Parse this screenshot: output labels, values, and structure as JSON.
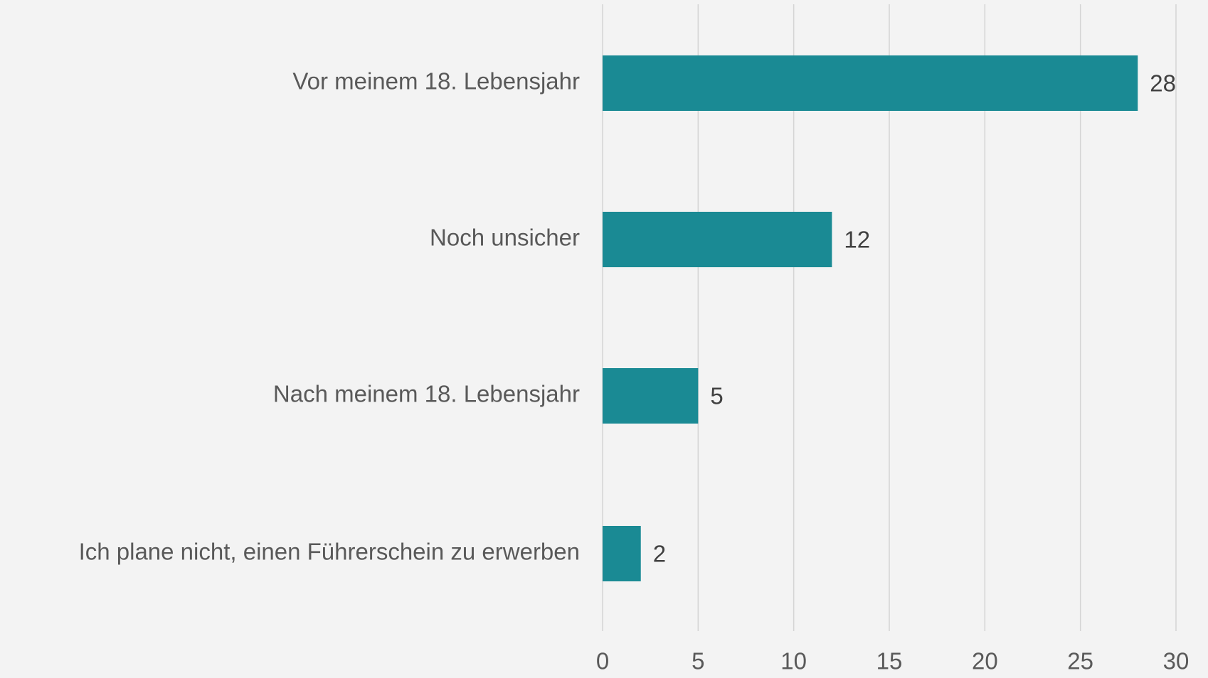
{
  "chart_data": {
    "type": "bar",
    "orientation": "horizontal",
    "categories": [
      "Vor meinem 18. Lebensjahr",
      "Noch unsicher",
      "Nach meinem 18. Lebensjahr",
      "Ich plane nicht, einen Führerschein zu erwerben"
    ],
    "values": [
      28,
      12,
      5,
      2
    ],
    "color": "#1a8a94",
    "xlim": [
      0,
      30
    ],
    "xticks": [
      0,
      5,
      10,
      15,
      20,
      25,
      30
    ],
    "grid": true
  }
}
